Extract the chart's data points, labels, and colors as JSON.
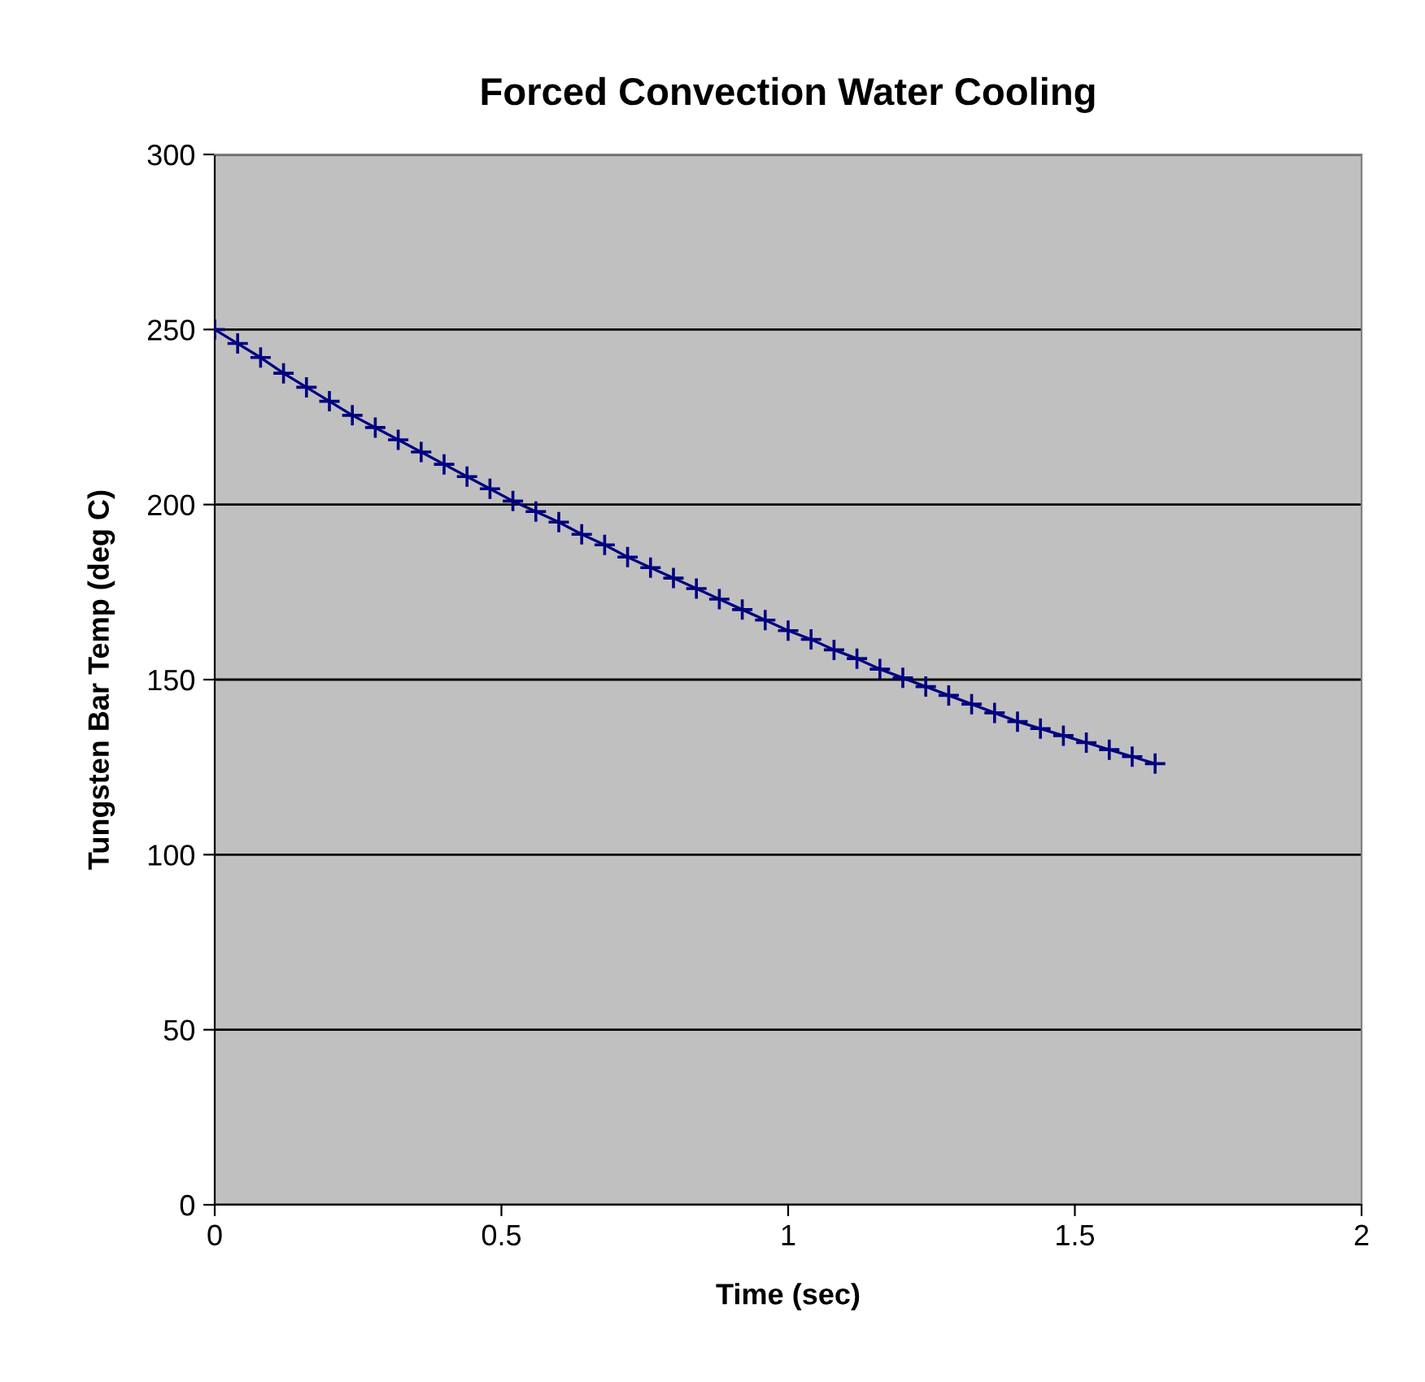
{
  "chart_data": {
    "type": "line",
    "title": "Forced Convection Water Cooling",
    "xlabel": "Time (sec)",
    "ylabel": "Tungsten Bar Temp (deg C)",
    "x": [
      0,
      0.04,
      0.08,
      0.12,
      0.16,
      0.2,
      0.24,
      0.28,
      0.32,
      0.36,
      0.4,
      0.44,
      0.48,
      0.52,
      0.56,
      0.6,
      0.64,
      0.68,
      0.72,
      0.76,
      0.8,
      0.84,
      0.88,
      0.92,
      0.96,
      1.0,
      1.04,
      1.08,
      1.12,
      1.16,
      1.2,
      1.24,
      1.28,
      1.32,
      1.36,
      1.4,
      1.44,
      1.48,
      1.52,
      1.56,
      1.6,
      1.64
    ],
    "series": [
      {
        "color": "#000080",
        "values": [
          250,
          246,
          242,
          237.5,
          233.5,
          229.5,
          225.5,
          222,
          218.5,
          215,
          211.5,
          208,
          204.5,
          201,
          198,
          195,
          191.5,
          188.5,
          185,
          182,
          179,
          176,
          173,
          170,
          167,
          164,
          161.5,
          158.5,
          156,
          153,
          150.5,
          148,
          145.5,
          143,
          140.5,
          138,
          136,
          134,
          132,
          130,
          128,
          126
        ]
      }
    ],
    "xlim": [
      0,
      2
    ],
    "xticks": [
      0,
      0.5,
      1,
      1.5,
      2
    ],
    "ylim": [
      0,
      300
    ],
    "yticks": [
      0,
      50,
      100,
      150,
      200,
      250,
      300
    ],
    "grid": "y",
    "marker": "cross",
    "line_style": "solid"
  }
}
